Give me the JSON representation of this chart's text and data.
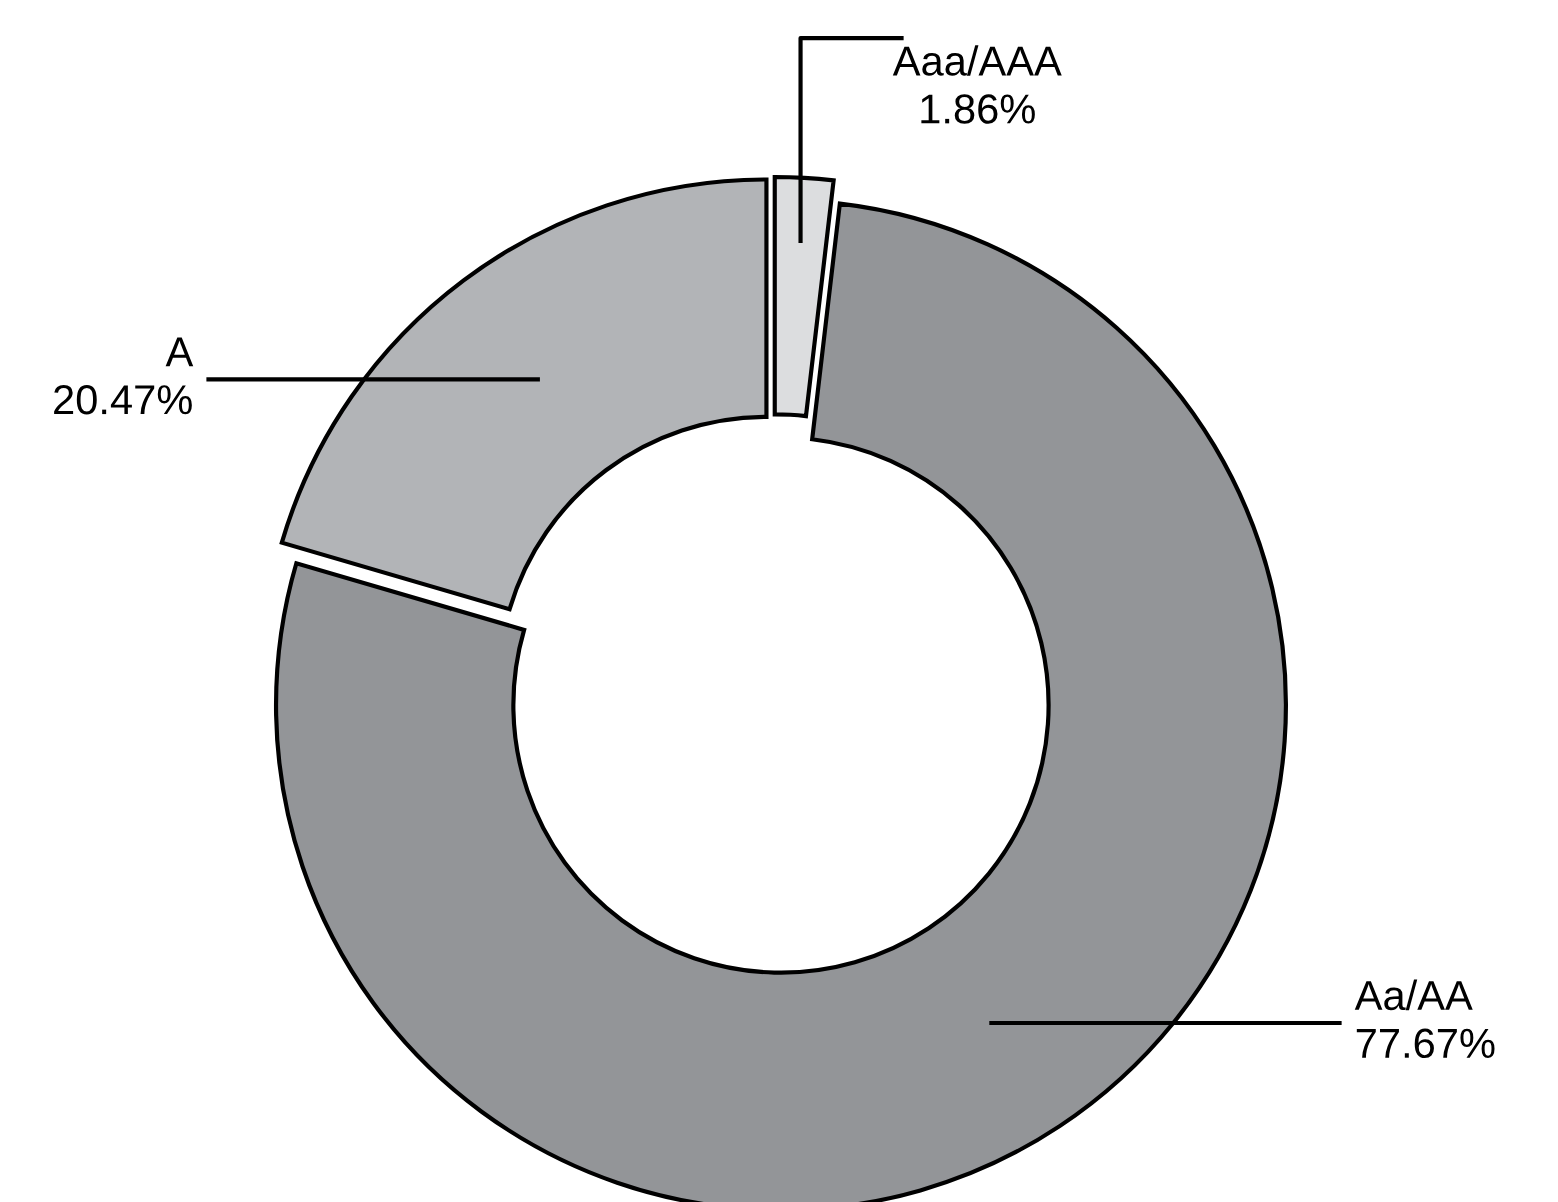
{
  "chart_data": {
    "type": "donut",
    "categories": [
      "Aaa/AAA",
      "Aa/AA",
      "A"
    ],
    "values": [
      1.86,
      77.67,
      20.47
    ],
    "value_labels": [
      "1.86%",
      "77.67%",
      "20.47%"
    ],
    "colors": [
      "#dcdddf",
      "#939598",
      "#b2b4b7"
    ],
    "legend": false
  }
}
